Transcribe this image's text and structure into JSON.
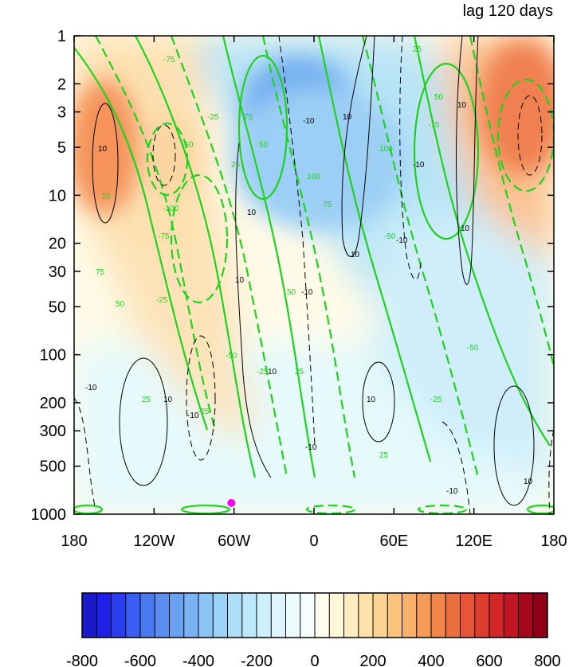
{
  "chart_data": {
    "type": "heatmap",
    "title": "lag 120 days",
    "xlabel": "",
    "ylabel": "",
    "x_tick_labels": [
      "180",
      "120W",
      "60W",
      "0",
      "60E",
      "120E",
      "180"
    ],
    "y_tick_labels": [
      "1",
      "2",
      "3",
      "5",
      "10",
      "20",
      "30",
      "50",
      "100",
      "200",
      "300",
      "500",
      "1000"
    ],
    "y_scale": "log",
    "y_inverted": true,
    "xlim": [
      -180,
      180
    ],
    "ylim": [
      1000,
      1
    ],
    "colorbar": {
      "tick_labels": [
        "-800",
        "-600",
        "-400",
        "-200",
        "0",
        "200",
        "400",
        "600",
        "800"
      ],
      "levels": [
        -800,
        -750,
        -700,
        -650,
        -600,
        -550,
        -500,
        -450,
        -400,
        -350,
        -300,
        -250,
        -200,
        -150,
        -100,
        -50,
        0,
        50,
        100,
        150,
        200,
        250,
        300,
        350,
        400,
        450,
        500,
        550,
        600,
        650,
        700,
        750,
        800
      ],
      "colors": [
        "#1a1acc",
        "#2020e6",
        "#2a3ef0",
        "#3a5ef2",
        "#4a78f0",
        "#5a8ef2",
        "#69a2f3",
        "#7ab3f5",
        "#8bc4f7",
        "#9bd2f8",
        "#acdef9",
        "#bde8fb",
        "#cdf0fc",
        "#ddf6fd",
        "#ecfbfe",
        "#f6fdff",
        "#fffdf0",
        "#fff6d8",
        "#feedc2",
        "#fde1a8",
        "#fcd393",
        "#fbc37e",
        "#f8b06a",
        "#f59b59",
        "#f1854a",
        "#ec6d3e",
        "#e65535",
        "#de3d2e",
        "#d22828",
        "#c01522",
        "#a8081c",
        "#8f0016"
      ]
    },
    "filled_field_anomaly": [
      {
        "lon": 165,
        "p": 3,
        "value": 520
      },
      {
        "lon": -160,
        "p": 5,
        "value": 420
      },
      {
        "lon": -20,
        "p": 3,
        "value": -330
      },
      {
        "lon": 60,
        "p": 30,
        "value": -170
      },
      {
        "lon": 120,
        "p": 200,
        "value": -40
      },
      {
        "lon": -90,
        "p": 150,
        "value": 120
      },
      {
        "lon": 0,
        "p": 500,
        "value": 30
      }
    ],
    "contour_line_labels": [
      "-10",
      "10",
      "-25",
      "25",
      "-50",
      "50",
      "-75",
      "75",
      "-100",
      "100"
    ],
    "marker": {
      "lon": -62,
      "p": 850,
      "color": "#ff00ff"
    }
  }
}
